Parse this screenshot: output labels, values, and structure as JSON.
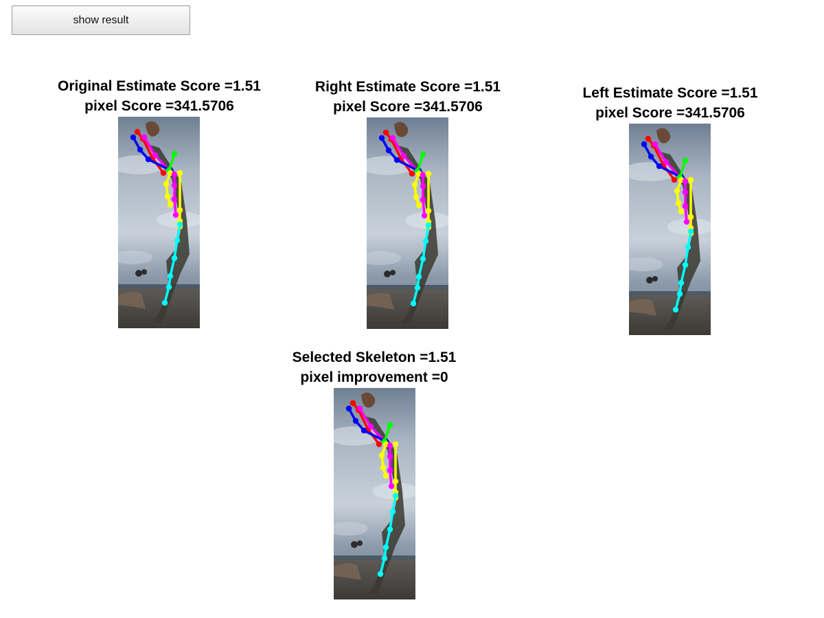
{
  "toolbar": {
    "show_result_label": "show result"
  },
  "panels": [
    {
      "line1": "Original Estimate Score =1.51",
      "line2": "pixel Score =341.5706"
    },
    {
      "line1": "Right Estimate Score =1.51",
      "line2": "pixel Score =341.5706"
    },
    {
      "line1": "Left Estimate Score =1.51",
      "line2": "pixel Score =341.5706"
    },
    {
      "line1": "Selected Skeleton =1.51",
      "line2": "pixel improvement =0"
    }
  ],
  "skeleton_colors": {
    "head": "#ff0000",
    "right-arm": "#ff00ff",
    "left-arm": "#0000ff",
    "neck": "#00ff00",
    "torso": "#ffff00",
    "leg": "#00ffff"
  }
}
